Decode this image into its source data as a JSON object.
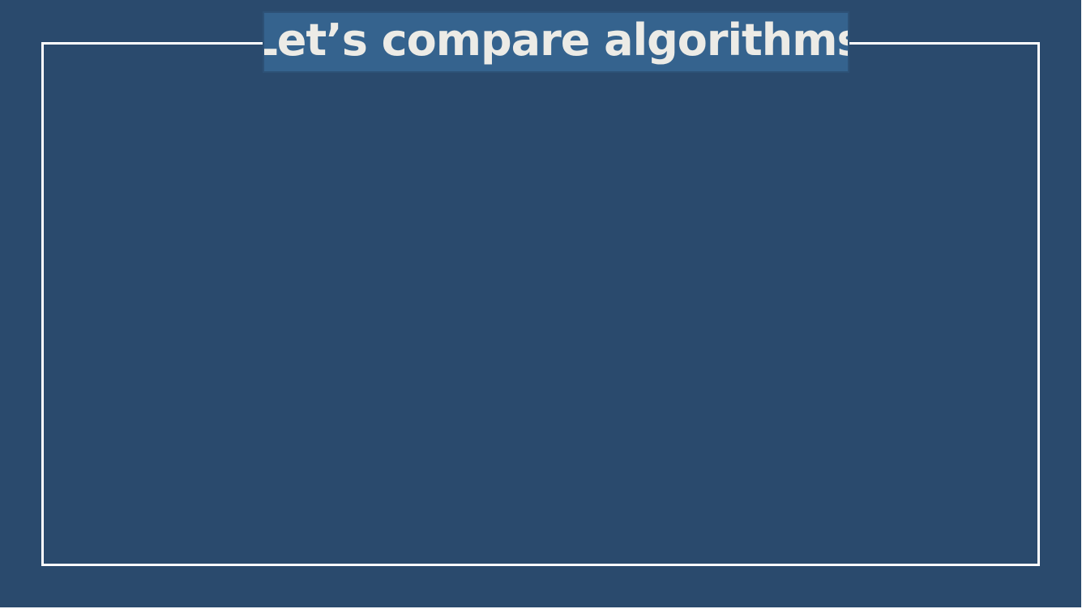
{
  "slide": {
    "title": "Let’s compare algorithms"
  },
  "colors": {
    "background": "#2a4a6d",
    "title_box": "#35638e",
    "title_text": "#ecebe6",
    "frame": "#ffffff"
  }
}
